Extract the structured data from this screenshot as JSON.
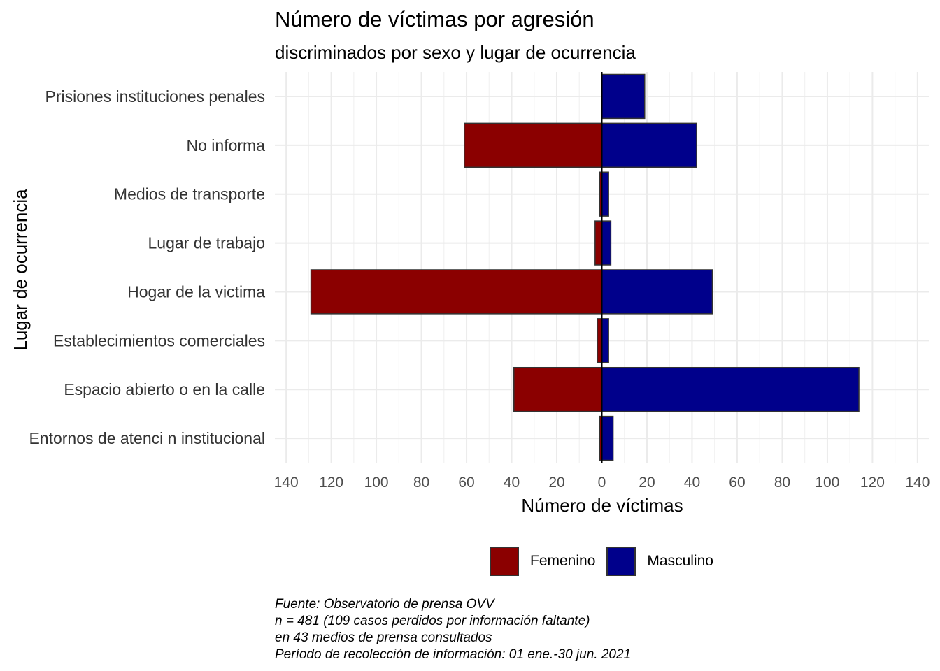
{
  "chart_data": {
    "type": "bar",
    "orientation": "horizontal",
    "layout": "diverging",
    "title": "Número de víctimas por agresión",
    "subtitle": "discriminados por sexo y lugar de ocurrencia",
    "xlabel": "Número de víctimas",
    "ylabel": "Lugar de ocurrencia",
    "xlim": [
      -145,
      145
    ],
    "xticks": [
      -140,
      -120,
      -100,
      -80,
      -60,
      -40,
      -20,
      0,
      20,
      40,
      60,
      80,
      100,
      120,
      140
    ],
    "xtick_labels": [
      "140",
      "120",
      "100",
      "80",
      "60",
      "40",
      "20",
      "0",
      "20",
      "40",
      "60",
      "80",
      "100",
      "120",
      "140"
    ],
    "grid": true,
    "legend_position": "bottom",
    "categories": [
      "Prisiones  instituciones penales",
      "No informa",
      "Medios de transporte",
      "Lugar de trabajo",
      "Hogar de la victima",
      "Establecimientos comerciales",
      "Espacio abierto o en la calle",
      "Entornos de atenci n institucional"
    ],
    "series": [
      {
        "name": "Femenino",
        "color": "#8B0000",
        "values": [
          0,
          61,
          1,
          3,
          129,
          2,
          39,
          1
        ]
      },
      {
        "name": "Masculino",
        "color": "#00008B",
        "values": [
          19,
          42,
          3,
          4,
          49,
          3,
          114,
          5
        ]
      }
    ],
    "caption": [
      "Fuente: Observatorio de prensa OVV",
      "n = 481 (109 casos perdidos por información faltante)",
      "en 43 medios de prensa consultados",
      "Período de recolección de información: 01 ene.-30 jun. 2021"
    ]
  }
}
